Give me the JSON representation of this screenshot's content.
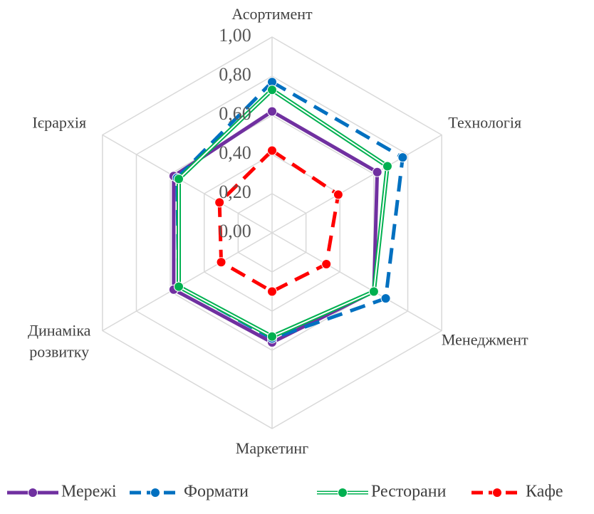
{
  "chart_data": {
    "type": "radar",
    "categories": [
      "Асортимент",
      "Технологія",
      "Менеджмент",
      "Маркетинг",
      "Динаміка розвитку",
      "Ієрархія"
    ],
    "ylim": [
      0,
      1
    ],
    "yticks": [
      {
        "value": 0,
        "label": "0,00"
      },
      {
        "value": 0.2,
        "label": "0,20"
      },
      {
        "value": 0.4,
        "label": "0,40"
      },
      {
        "value": 0.6,
        "label": "0,60"
      },
      {
        "value": 0.8,
        "label": "0,80"
      },
      {
        "value": 1,
        "label": "1,00"
      }
    ],
    "grid": true,
    "legend": "bottom",
    "series": [
      {
        "name": "Мережі",
        "color": "#7030a0",
        "line_style": "solid",
        "values": [
          0.62,
          0.62,
          0.6,
          0.56,
          0.58,
          0.58
        ]
      },
      {
        "name": "Формати",
        "color": "#0070c0",
        "line_style": "dash",
        "values": [
          0.77,
          0.77,
          0.67,
          0.54,
          0.55,
          0.56
        ]
      },
      {
        "name": "Ресторани",
        "color": "#00b050",
        "line_style": "double",
        "values": [
          0.73,
          0.68,
          0.6,
          0.53,
          0.55,
          0.55
        ]
      },
      {
        "name": "Кафе",
        "color": "#ff0000",
        "line_style": "dash",
        "values": [
          0.42,
          0.39,
          0.32,
          0.3,
          0.3,
          0.31
        ]
      }
    ]
  }
}
